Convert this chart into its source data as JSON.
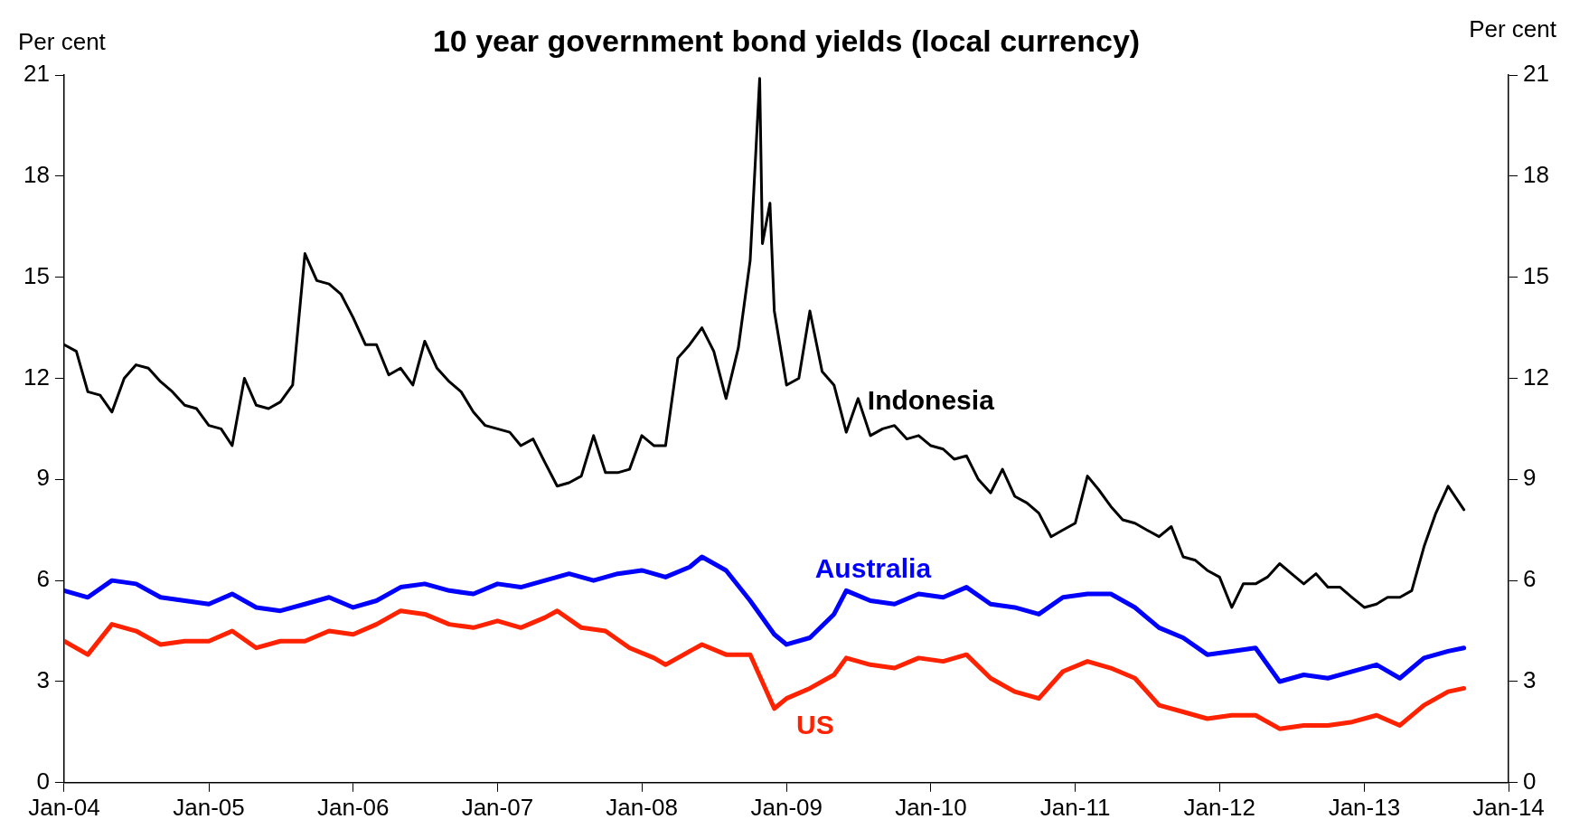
{
  "chart_data": {
    "type": "line",
    "title": "10 year government bond yields (local currency)",
    "ylabel": "Per cent",
    "y2label": "Per cent",
    "xlim": [
      "2004-01",
      "2014-01"
    ],
    "xticks": [
      {
        "value": "2004-01",
        "label": "Jan-04"
      },
      {
        "value": "2005-01",
        "label": "Jan-05"
      },
      {
        "value": "2006-01",
        "label": "Jan-06"
      },
      {
        "value": "2007-01",
        "label": "Jan-07"
      },
      {
        "value": "2008-01",
        "label": "Jan-08"
      },
      {
        "value": "2009-01",
        "label": "Jan-09"
      },
      {
        "value": "2010-01",
        "label": "Jan-10"
      },
      {
        "value": "2011-01",
        "label": "Jan-11"
      },
      {
        "value": "2012-01",
        "label": "Jan-12"
      },
      {
        "value": "2013-01",
        "label": "Jan-13"
      },
      {
        "value": "2014-01",
        "label": "Jan-14"
      }
    ],
    "ylim": [
      0,
      21
    ],
    "yticks": [
      0,
      3,
      6,
      9,
      12,
      15,
      18,
      21
    ],
    "y2lim": [
      0,
      21
    ],
    "y2ticks": [
      0,
      3,
      6,
      9,
      12,
      15,
      18,
      21
    ],
    "grid": false,
    "legend": false,
    "marker": "none",
    "line_style": "solid",
    "series": [
      {
        "name": "Indonesia",
        "color": "#000000",
        "x": [
          "2004-01",
          "2004-02",
          "2004-03",
          "2004-04",
          "2004-05",
          "2004-06",
          "2004-07",
          "2004-08",
          "2004-09",
          "2004-10",
          "2004-11",
          "2004-12",
          "2005-01",
          "2005-02",
          "2005-03",
          "2005-04",
          "2005-05",
          "2005-06",
          "2005-07",
          "2005-08",
          "2005-09",
          "2005-10",
          "2005-11",
          "2005-12",
          "2006-01",
          "2006-02",
          "2006-03",
          "2006-04",
          "2006-05",
          "2006-06",
          "2006-07",
          "2006-08",
          "2006-09",
          "2006-10",
          "2006-11",
          "2006-12",
          "2007-01",
          "2007-02",
          "2007-03",
          "2007-04",
          "2007-05",
          "2007-06",
          "2007-07",
          "2007-08",
          "2007-09",
          "2007-10",
          "2007-11",
          "2007-12",
          "2008-01",
          "2008-02",
          "2008-03",
          "2008-04",
          "2008-05",
          "2008-06",
          "2008-07",
          "2008-08",
          "2008-09",
          "2008-10",
          "2008-10-25",
          "2008-11",
          "2008-11-20",
          "2008-12",
          "2009-01",
          "2009-02",
          "2009-03",
          "2009-04",
          "2009-05",
          "2009-06",
          "2009-07",
          "2009-08",
          "2009-09",
          "2009-10",
          "2009-11",
          "2009-12",
          "2010-01",
          "2010-02",
          "2010-03",
          "2010-04",
          "2010-05",
          "2010-06",
          "2010-07",
          "2010-08",
          "2010-09",
          "2010-10",
          "2010-11",
          "2010-12",
          "2011-01",
          "2011-02",
          "2011-03",
          "2011-04",
          "2011-05",
          "2011-06",
          "2011-07",
          "2011-08",
          "2011-09",
          "2011-10",
          "2011-11",
          "2011-12",
          "2012-01",
          "2012-02",
          "2012-03",
          "2012-04",
          "2012-05",
          "2012-06",
          "2012-07",
          "2012-08",
          "2012-09",
          "2012-10",
          "2012-11",
          "2012-12",
          "2013-01",
          "2013-02",
          "2013-03",
          "2013-04",
          "2013-05",
          "2013-06",
          "2013-07",
          "2013-08",
          "2013-09-10"
        ],
        "values": [
          13.0,
          12.8,
          11.6,
          11.5,
          11.0,
          12.0,
          12.4,
          12.3,
          11.9,
          11.6,
          11.2,
          11.1,
          10.6,
          10.5,
          10.0,
          12.0,
          11.2,
          11.1,
          11.3,
          11.8,
          15.7,
          14.9,
          14.8,
          14.5,
          13.8,
          13.0,
          13.0,
          12.1,
          12.3,
          11.8,
          13.1,
          12.3,
          11.9,
          11.6,
          11.0,
          10.6,
          10.5,
          10.4,
          10.0,
          10.2,
          9.5,
          8.8,
          8.9,
          9.1,
          10.3,
          9.2,
          9.2,
          9.3,
          10.3,
          10.0,
          10.0,
          12.6,
          13.0,
          13.5,
          12.8,
          11.4,
          12.9,
          15.5,
          20.9,
          16.0,
          17.2,
          14.0,
          11.8,
          12.0,
          14.0,
          12.2,
          11.8,
          10.4,
          11.4,
          10.3,
          10.5,
          10.6,
          10.2,
          10.3,
          10.0,
          9.9,
          9.6,
          9.7,
          9.0,
          8.6,
          9.3,
          8.5,
          8.3,
          8.0,
          7.3,
          7.5,
          7.7,
          9.1,
          8.7,
          8.2,
          7.8,
          7.7,
          7.5,
          7.3,
          7.6,
          6.7,
          6.6,
          6.3,
          6.1,
          5.2,
          5.9,
          5.9,
          6.1,
          6.5,
          6.2,
          5.9,
          6.2,
          5.8,
          5.8,
          5.5,
          5.2,
          5.3,
          5.5,
          5.5,
          5.7,
          7.0,
          8.0,
          8.8,
          8.1
        ]
      },
      {
        "name": "Australia",
        "color": "#0000ff",
        "x": [
          "2004-01",
          "2004-03",
          "2004-05",
          "2004-07",
          "2004-09",
          "2004-11",
          "2005-01",
          "2005-03",
          "2005-05",
          "2005-07",
          "2005-09",
          "2005-11",
          "2006-01",
          "2006-03",
          "2006-05",
          "2006-07",
          "2006-09",
          "2006-11",
          "2007-01",
          "2007-03",
          "2007-05",
          "2007-07",
          "2007-09",
          "2007-11",
          "2008-01",
          "2008-03",
          "2008-05",
          "2008-06",
          "2008-08",
          "2008-10",
          "2008-12",
          "2009-01",
          "2009-03",
          "2009-05",
          "2009-06",
          "2009-08",
          "2009-10",
          "2009-12",
          "2010-02",
          "2010-04",
          "2010-06",
          "2010-08",
          "2010-10",
          "2010-12",
          "2011-02",
          "2011-04",
          "2011-06",
          "2011-08",
          "2011-10",
          "2011-12",
          "2012-02",
          "2012-04",
          "2012-06",
          "2012-08",
          "2012-10",
          "2012-12",
          "2013-02",
          "2013-04",
          "2013-06",
          "2013-08",
          "2013-09-10"
        ],
        "values": [
          5.7,
          5.5,
          6.0,
          5.9,
          5.5,
          5.4,
          5.3,
          5.6,
          5.2,
          5.1,
          5.3,
          5.5,
          5.2,
          5.4,
          5.8,
          5.9,
          5.7,
          5.6,
          5.9,
          5.8,
          6.0,
          6.2,
          6.0,
          6.2,
          6.3,
          6.1,
          6.4,
          6.7,
          6.3,
          5.4,
          4.4,
          4.1,
          4.3,
          5.0,
          5.7,
          5.4,
          5.3,
          5.6,
          5.5,
          5.8,
          5.3,
          5.2,
          5.0,
          5.5,
          5.6,
          5.6,
          5.2,
          4.6,
          4.3,
          3.8,
          3.9,
          4.0,
          3.0,
          3.2,
          3.1,
          3.3,
          3.5,
          3.1,
          3.7,
          3.9,
          4.0
        ]
      },
      {
        "name": "US",
        "color": "#ff2200",
        "x": [
          "2004-01",
          "2004-03",
          "2004-05",
          "2004-07",
          "2004-09",
          "2004-11",
          "2005-01",
          "2005-03",
          "2005-05",
          "2005-07",
          "2005-09",
          "2005-11",
          "2006-01",
          "2006-03",
          "2006-05",
          "2006-07",
          "2006-09",
          "2006-11",
          "2007-01",
          "2007-03",
          "2007-05",
          "2007-06",
          "2007-08",
          "2007-10",
          "2007-12",
          "2008-02",
          "2008-03",
          "2008-05",
          "2008-06",
          "2008-08",
          "2008-10",
          "2008-12",
          "2009-01",
          "2009-03",
          "2009-05",
          "2009-06",
          "2009-08",
          "2009-10",
          "2009-12",
          "2010-02",
          "2010-04",
          "2010-06",
          "2010-08",
          "2010-10",
          "2010-12",
          "2011-02",
          "2011-04",
          "2011-06",
          "2011-08",
          "2011-10",
          "2011-12",
          "2012-02",
          "2012-04",
          "2012-06",
          "2012-08",
          "2012-10",
          "2012-12",
          "2013-02",
          "2013-04",
          "2013-06",
          "2013-08",
          "2013-09-10"
        ],
        "values": [
          4.2,
          3.8,
          4.7,
          4.5,
          4.1,
          4.2,
          4.2,
          4.5,
          4.0,
          4.2,
          4.2,
          4.5,
          4.4,
          4.7,
          5.1,
          5.0,
          4.7,
          4.6,
          4.8,
          4.6,
          4.9,
          5.1,
          4.6,
          4.5,
          4.0,
          3.7,
          3.5,
          3.9,
          4.1,
          3.8,
          3.8,
          2.2,
          2.5,
          2.8,
          3.2,
          3.7,
          3.5,
          3.4,
          3.7,
          3.6,
          3.8,
          3.1,
          2.7,
          2.5,
          3.3,
          3.6,
          3.4,
          3.1,
          2.3,
          2.1,
          1.9,
          2.0,
          2.0,
          1.6,
          1.7,
          1.7,
          1.8,
          2.0,
          1.7,
          2.3,
          2.7,
          2.8
        ]
      }
    ]
  }
}
